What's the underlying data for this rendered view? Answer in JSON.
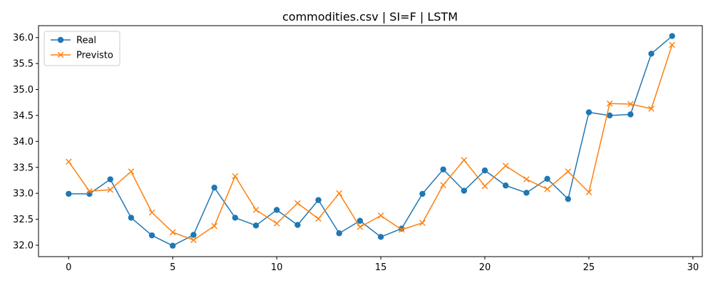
{
  "chart_data": {
    "type": "line",
    "title": "commodities.csv | SI=F | LSTM",
    "xlabel": "",
    "ylabel": "",
    "xlim": [
      -1.45,
      30.45
    ],
    "ylim": [
      31.78,
      36.23
    ],
    "xticks": [
      0,
      5,
      10,
      15,
      20,
      25,
      30
    ],
    "xtick_labels": [
      "0",
      "5",
      "10",
      "15",
      "20",
      "25",
      "30"
    ],
    "yticks": [
      32.0,
      32.5,
      33.0,
      33.5,
      34.0,
      34.5,
      35.0,
      35.5,
      36.0
    ],
    "ytick_labels": [
      "32.0",
      "32.5",
      "33.0",
      "33.5",
      "34.0",
      "34.5",
      "35.0",
      "35.5",
      "36.0"
    ],
    "grid": false,
    "legend_position": "top-left",
    "x": [
      0,
      1,
      2,
      3,
      4,
      5,
      6,
      7,
      8,
      9,
      10,
      11,
      12,
      13,
      14,
      15,
      16,
      17,
      18,
      19,
      20,
      21,
      22,
      23,
      24,
      25,
      26,
      27,
      28,
      29
    ],
    "series": [
      {
        "name": "Real",
        "marker": "circle",
        "color": "#1f77b4",
        "values": [
          32.99,
          32.99,
          33.27,
          32.53,
          32.19,
          31.99,
          32.2,
          33.11,
          32.53,
          32.38,
          32.68,
          32.39,
          32.87,
          32.23,
          32.47,
          32.16,
          32.32,
          32.99,
          33.46,
          33.05,
          33.44,
          33.15,
          33.01,
          33.28,
          32.89,
          34.56,
          34.5,
          34.52,
          35.69,
          36.03
        ]
      },
      {
        "name": "Previsto",
        "marker": "x",
        "color": "#ff7f0e",
        "values": [
          33.61,
          33.04,
          33.07,
          33.42,
          32.63,
          32.25,
          32.1,
          32.37,
          33.33,
          32.68,
          32.42,
          32.81,
          32.51,
          33.0,
          32.35,
          32.57,
          32.3,
          32.43,
          33.16,
          33.64,
          33.14,
          33.53,
          33.27,
          33.08,
          33.42,
          33.02,
          34.73,
          34.72,
          34.63,
          35.86
        ]
      }
    ]
  }
}
